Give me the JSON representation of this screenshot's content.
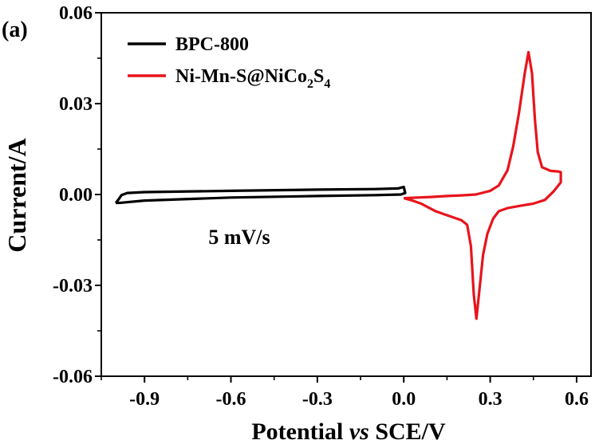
{
  "chart_data": {
    "type": "line",
    "panel_label": "(a)",
    "xlabel_parts": [
      "Potential ",
      "vs",
      " SCE/V"
    ],
    "ylabel": "Current/A",
    "xlim": [
      -1.05,
      0.65
    ],
    "ylim": [
      -0.06,
      0.06
    ],
    "x_ticks": [
      -0.9,
      -0.6,
      -0.3,
      0.0,
      0.3,
      0.6
    ],
    "x_tick_labels": [
      "-0.9",
      "-0.6",
      "-0.3",
      "0.0",
      "0.3",
      "0.6"
    ],
    "y_ticks": [
      -0.06,
      -0.03,
      0.0,
      0.03,
      0.06
    ],
    "y_tick_labels": [
      "-0.06",
      "-0.03",
      "0.00",
      "0.03",
      "0.06"
    ],
    "grid": false,
    "legend_position": "top-left",
    "annotation": "5 mV/s",
    "series": [
      {
        "name": "BPC-800",
        "color": "#000000",
        "points": [
          [
            -1.0,
            -0.0028
          ],
          [
            -0.99,
            -0.0016
          ],
          [
            -0.98,
            -0.0002
          ],
          [
            -0.96,
            0.0005
          ],
          [
            -0.9,
            0.0008
          ],
          [
            -0.6,
            0.0012
          ],
          [
            -0.3,
            0.0016
          ],
          [
            -0.1,
            0.0018
          ],
          [
            -0.02,
            0.002
          ],
          [
            0.0,
            0.0025
          ],
          [
            0.005,
            0.0005
          ],
          [
            -0.01,
            0.0
          ],
          [
            -0.1,
            -0.0002
          ],
          [
            -0.3,
            -0.0005
          ],
          [
            -0.6,
            -0.001
          ],
          [
            -0.9,
            -0.002
          ],
          [
            -0.98,
            -0.0027
          ],
          [
            -1.0,
            -0.0028
          ]
        ]
      },
      {
        "name_parts": [
          "Ni-Mn-S@NiCo",
          "2",
          "S",
          "4"
        ],
        "color": "#e8141c",
        "points": [
          [
            0.0,
            -0.0012
          ],
          [
            0.05,
            -0.001
          ],
          [
            0.1,
            -0.0008
          ],
          [
            0.15,
            -0.0005
          ],
          [
            0.2,
            -0.0003
          ],
          [
            0.25,
            0.0
          ],
          [
            0.3,
            0.0012
          ],
          [
            0.33,
            0.003
          ],
          [
            0.36,
            0.008
          ],
          [
            0.38,
            0.016
          ],
          [
            0.4,
            0.027
          ],
          [
            0.42,
            0.04
          ],
          [
            0.433,
            0.047
          ],
          [
            0.445,
            0.04
          ],
          [
            0.455,
            0.025
          ],
          [
            0.465,
            0.014
          ],
          [
            0.48,
            0.009
          ],
          [
            0.51,
            0.0078
          ],
          [
            0.535,
            0.0076
          ],
          [
            0.545,
            0.0074
          ],
          [
            0.545,
            0.004
          ],
          [
            0.52,
            0.001
          ],
          [
            0.49,
            -0.0018
          ],
          [
            0.45,
            -0.003
          ],
          [
            0.4,
            -0.0038
          ],
          [
            0.36,
            -0.0045
          ],
          [
            0.33,
            -0.0055
          ],
          [
            0.31,
            -0.008
          ],
          [
            0.29,
            -0.013
          ],
          [
            0.275,
            -0.02
          ],
          [
            0.262,
            -0.032
          ],
          [
            0.252,
            -0.041
          ],
          [
            0.243,
            -0.033
          ],
          [
            0.233,
            -0.017
          ],
          [
            0.22,
            -0.01
          ],
          [
            0.2,
            -0.0085
          ],
          [
            0.17,
            -0.0075
          ],
          [
            0.14,
            -0.0065
          ],
          [
            0.11,
            -0.0055
          ],
          [
            0.09,
            -0.0045
          ],
          [
            0.06,
            -0.003
          ],
          [
            0.03,
            -0.002
          ],
          [
            0.0,
            -0.0012
          ]
        ]
      }
    ]
  }
}
